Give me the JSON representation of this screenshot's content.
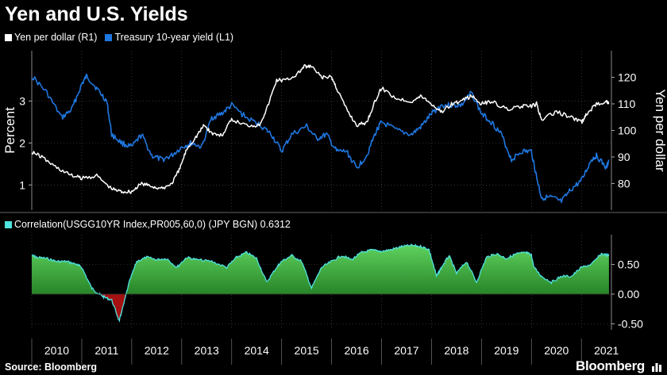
{
  "header": {
    "title": "Yen and U.S. Yields"
  },
  "footer": {
    "source": "Source: Bloomberg",
    "brand": "Bloomberg"
  },
  "colors": {
    "background": "#000000",
    "yen": "#ffffff",
    "treasury": "#1f77e0",
    "corr_line": "#4fe3e0",
    "corr_pos": "#1a8f1a",
    "corr_neg": "#a51010",
    "grid": "#555555"
  },
  "chart_data": [
    {
      "type": "line",
      "series": [
        {
          "name": "Yen per dollar (R1)",
          "axis": "right",
          "x": [
            2010.0,
            2010.2,
            2010.5,
            2010.8,
            2011.0,
            2011.3,
            2011.6,
            2011.8,
            2012.0,
            2012.2,
            2012.4,
            2012.6,
            2012.8,
            2012.95,
            2013.1,
            2013.3,
            2013.45,
            2013.6,
            2013.8,
            2014.0,
            2014.3,
            2014.55,
            2014.7,
            2014.9,
            2015.1,
            2015.3,
            2015.45,
            2015.6,
            2015.8,
            2016.0,
            2016.1,
            2016.3,
            2016.5,
            2016.7,
            2016.85,
            2017.0,
            2017.3,
            2017.6,
            2017.8,
            2018.0,
            2018.2,
            2018.4,
            2018.6,
            2018.8,
            2019.0,
            2019.2,
            2019.5,
            2019.8,
            2020.0,
            2020.1,
            2020.2,
            2020.5,
            2020.8,
            2021.0,
            2021.1,
            2021.3,
            2021.5,
            2021.55
          ],
          "values": [
            92,
            90,
            86,
            83,
            82,
            83,
            78,
            77,
            77,
            80,
            79,
            78,
            80,
            85,
            93,
            98,
            102,
            99,
            98,
            104,
            102,
            102,
            108,
            119,
            119,
            121,
            124,
            124,
            120,
            120,
            116,
            108,
            102,
            103,
            110,
            116,
            112,
            111,
            113,
            110,
            107,
            110,
            111,
            113,
            110,
            111,
            108,
            109,
            109,
            110,
            104,
            107,
            105,
            103,
            106,
            110,
            111,
            110
          ]
        },
        {
          "name": "Treasury 10-year yield (L1)",
          "axis": "left",
          "x": [
            2010.0,
            2010.3,
            2010.6,
            2010.8,
            2011.0,
            2011.1,
            2011.3,
            2011.5,
            2011.6,
            2011.8,
            2012.0,
            2012.2,
            2012.4,
            2012.6,
            2012.8,
            2013.0,
            2013.2,
            2013.4,
            2013.6,
            2013.8,
            2014.0,
            2014.3,
            2014.6,
            2014.8,
            2015.0,
            2015.2,
            2015.5,
            2015.7,
            2015.9,
            2016.1,
            2016.3,
            2016.5,
            2016.7,
            2016.9,
            2017.0,
            2017.3,
            2017.6,
            2017.8,
            2018.0,
            2018.2,
            2018.4,
            2018.6,
            2018.8,
            2019.0,
            2019.2,
            2019.4,
            2019.6,
            2019.8,
            2020.0,
            2020.1,
            2020.2,
            2020.4,
            2020.6,
            2020.8,
            2021.0,
            2021.2,
            2021.3,
            2021.5,
            2021.55
          ],
          "values": [
            3.6,
            3.2,
            2.6,
            2.8,
            3.4,
            3.6,
            3.3,
            3.0,
            2.2,
            2.0,
            1.9,
            2.2,
            1.7,
            1.6,
            1.7,
            1.9,
            2.0,
            1.9,
            2.6,
            2.7,
            2.9,
            2.6,
            2.4,
            2.2,
            1.8,
            2.2,
            2.4,
            2.1,
            2.2,
            1.8,
            1.8,
            1.4,
            1.7,
            2.3,
            2.5,
            2.3,
            2.2,
            2.4,
            2.7,
            2.9,
            2.9,
            2.9,
            3.2,
            2.7,
            2.5,
            2.2,
            1.6,
            1.8,
            1.8,
            1.2,
            0.7,
            0.7,
            0.6,
            0.9,
            1.1,
            1.6,
            1.7,
            1.4,
            1.6
          ]
        }
      ],
      "legend": "top-left",
      "ylabel_left": "Percent",
      "ylabel_right": "Yen per dollar",
      "ylim_left": [
        0.4,
        4.2
      ],
      "ylim_right": [
        70,
        130
      ],
      "yticks_left": [
        1,
        2,
        3
      ],
      "yticks_right": [
        80,
        90,
        100,
        110,
        120
      ]
    },
    {
      "type": "area",
      "legend_label": "Correlation(USGG10YR Index,PR005,60,0) (JPY BGN) 0.6312",
      "series": [
        {
          "name": "Correlation(USGG10YR Index,PR005,60,0) (JPY BGN) 0.6312",
          "x": [
            2010.0,
            2010.1,
            2010.3,
            2010.5,
            2010.7,
            2010.9,
            2011.0,
            2011.2,
            2011.35,
            2011.45,
            2011.6,
            2011.75,
            2011.8,
            2011.95,
            2012.1,
            2012.3,
            2012.5,
            2012.7,
            2012.9,
            2013.1,
            2013.3,
            2013.6,
            2013.9,
            2014.1,
            2014.3,
            2014.5,
            2014.7,
            2014.9,
            2015.0,
            2015.2,
            2015.4,
            2015.6,
            2015.8,
            2016.0,
            2016.2,
            2016.4,
            2016.6,
            2016.8,
            2017.0,
            2017.2,
            2017.4,
            2017.6,
            2017.8,
            2017.95,
            2018.1,
            2018.2,
            2018.35,
            2018.5,
            2018.7,
            2018.9,
            2019.1,
            2019.3,
            2019.5,
            2019.7,
            2019.9,
            2020.0,
            2020.05,
            2020.2,
            2020.4,
            2020.6,
            2020.8,
            2021.0,
            2021.2,
            2021.4,
            2021.55
          ],
          "values": [
            0.65,
            0.62,
            0.6,
            0.55,
            0.55,
            0.5,
            0.45,
            0.1,
            0.0,
            -0.05,
            -0.1,
            -0.45,
            -0.3,
            0.2,
            0.55,
            0.62,
            0.58,
            0.6,
            0.45,
            0.62,
            0.58,
            0.55,
            0.45,
            0.62,
            0.7,
            0.6,
            0.2,
            0.45,
            0.55,
            0.65,
            0.55,
            0.1,
            0.45,
            0.55,
            0.65,
            0.58,
            0.7,
            0.74,
            0.72,
            0.75,
            0.8,
            0.82,
            0.8,
            0.75,
            0.3,
            0.45,
            0.65,
            0.35,
            0.55,
            0.2,
            0.62,
            0.68,
            0.6,
            0.68,
            0.7,
            0.65,
            0.45,
            0.3,
            0.2,
            0.3,
            0.3,
            0.45,
            0.5,
            0.68,
            0.65
          ]
        }
      ],
      "ylim": [
        -0.6,
        1.0
      ],
      "yticks": [
        0.5,
        0.0,
        -0.5
      ],
      "ytick_labels": [
        "0.50",
        "0.00",
        "-0.50"
      ]
    }
  ],
  "x_axis": {
    "range": [
      2010.0,
      2021.6
    ],
    "tick_labels": [
      "2010",
      "2011",
      "2012",
      "2013",
      "2014",
      "2015",
      "2016",
      "2017",
      "2018",
      "2019",
      "2020",
      "2021"
    ]
  }
}
